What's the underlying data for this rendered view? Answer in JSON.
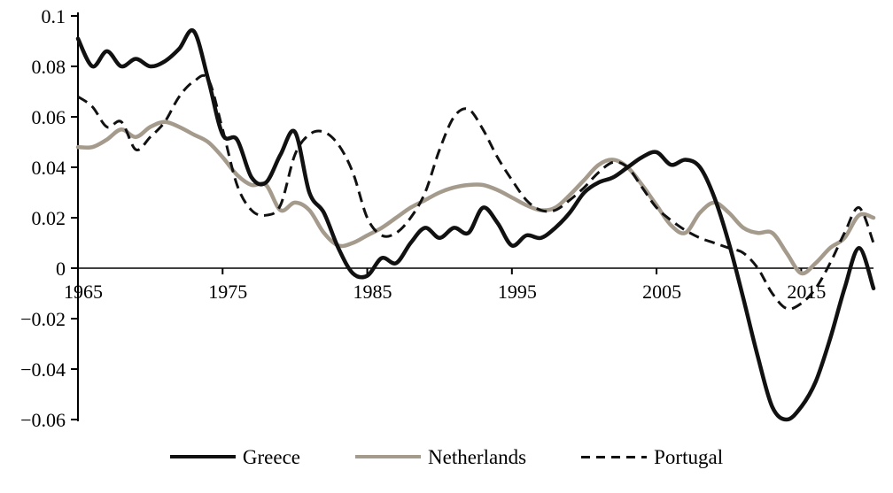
{
  "chart_data": {
    "type": "line",
    "title": "",
    "xlabel": "",
    "ylabel": "",
    "legend_position": "bottom",
    "grid": false,
    "background": "#ffffff",
    "axis_color": "#000000",
    "xlim": [
      1965,
      2020
    ],
    "ylim": [
      -0.06,
      0.1
    ],
    "xticks": [
      {
        "value": 1965,
        "label": "1965"
      },
      {
        "value": 1975,
        "label": "1975"
      },
      {
        "value": 1985,
        "label": "1985"
      },
      {
        "value": 1995,
        "label": "1995"
      },
      {
        "value": 2005,
        "label": "2005"
      },
      {
        "value": 2015,
        "label": "2015"
      }
    ],
    "yticks": [
      {
        "value": 0.1,
        "label": "0.1"
      },
      {
        "value": 0.08,
        "label": "0.08"
      },
      {
        "value": 0.06,
        "label": "0.06"
      },
      {
        "value": 0.04,
        "label": "0.04"
      },
      {
        "value": 0.02,
        "label": "0.02"
      },
      {
        "value": 0,
        "label": "0"
      },
      {
        "value": -0.02,
        "label": "−0.02"
      },
      {
        "value": -0.04,
        "label": "−0.04"
      },
      {
        "value": -0.06,
        "label": "−0.06"
      }
    ],
    "x": [
      1965,
      1966,
      1967,
      1968,
      1969,
      1970,
      1971,
      1972,
      1973,
      1974,
      1975,
      1976,
      1977,
      1978,
      1979,
      1980,
      1981,
      1982,
      1983,
      1984,
      1985,
      1986,
      1987,
      1988,
      1989,
      1990,
      1991,
      1992,
      1993,
      1994,
      1995,
      1996,
      1997,
      1998,
      1999,
      2000,
      2001,
      2002,
      2003,
      2004,
      2005,
      2006,
      2007,
      2008,
      2009,
      2010,
      2011,
      2012,
      2013,
      2014,
      2015,
      2016,
      2017,
      2018,
      2019,
      2020
    ],
    "series": [
      {
        "name": "Greece",
        "color": "#111111",
        "dash": "",
        "width": 4.5,
        "values": [
          0.091,
          0.08,
          0.086,
          0.08,
          0.083,
          0.08,
          0.082,
          0.087,
          0.094,
          0.075,
          0.053,
          0.051,
          0.036,
          0.034,
          0.045,
          0.054,
          0.03,
          0.022,
          0.008,
          -0.002,
          -0.003,
          0.004,
          0.002,
          0.01,
          0.016,
          0.012,
          0.016,
          0.014,
          0.024,
          0.018,
          0.009,
          0.013,
          0.012,
          0.016,
          0.022,
          0.03,
          0.034,
          0.036,
          0.04,
          0.044,
          0.046,
          0.041,
          0.043,
          0.04,
          0.028,
          0.01,
          -0.012,
          -0.035,
          -0.055,
          -0.06,
          -0.055,
          -0.045,
          -0.028,
          -0.008,
          0.008,
          -0.008
        ]
      },
      {
        "name": "Netherlands",
        "color": "#a59b8d",
        "dash": "",
        "width": 4.5,
        "values": [
          0.048,
          0.048,
          0.051,
          0.055,
          0.052,
          0.056,
          0.058,
          0.056,
          0.053,
          0.05,
          0.044,
          0.037,
          0.033,
          0.033,
          0.023,
          0.026,
          0.023,
          0.014,
          0.009,
          0.01,
          0.013,
          0.016,
          0.02,
          0.024,
          0.027,
          0.03,
          0.032,
          0.033,
          0.033,
          0.031,
          0.028,
          0.025,
          0.023,
          0.024,
          0.029,
          0.035,
          0.041,
          0.043,
          0.04,
          0.033,
          0.025,
          0.017,
          0.014,
          0.022,
          0.026,
          0.022,
          0.016,
          0.014,
          0.014,
          0.006,
          -0.002,
          0.002,
          0.008,
          0.012,
          0.021,
          0.02
        ]
      },
      {
        "name": "Portugal",
        "color": "#111111",
        "dash": "12 7",
        "width": 3,
        "values": [
          0.068,
          0.064,
          0.056,
          0.058,
          0.047,
          0.052,
          0.058,
          0.068,
          0.074,
          0.075,
          0.055,
          0.033,
          0.023,
          0.021,
          0.025,
          0.045,
          0.053,
          0.054,
          0.049,
          0.038,
          0.02,
          0.013,
          0.014,
          0.02,
          0.03,
          0.047,
          0.06,
          0.063,
          0.055,
          0.044,
          0.035,
          0.027,
          0.023,
          0.023,
          0.027,
          0.032,
          0.038,
          0.042,
          0.04,
          0.032,
          0.024,
          0.019,
          0.015,
          0.012,
          0.01,
          0.008,
          0.006,
          0.0,
          -0.01,
          -0.016,
          -0.014,
          -0.008,
          0.002,
          0.014,
          0.024,
          0.01
        ]
      }
    ]
  }
}
